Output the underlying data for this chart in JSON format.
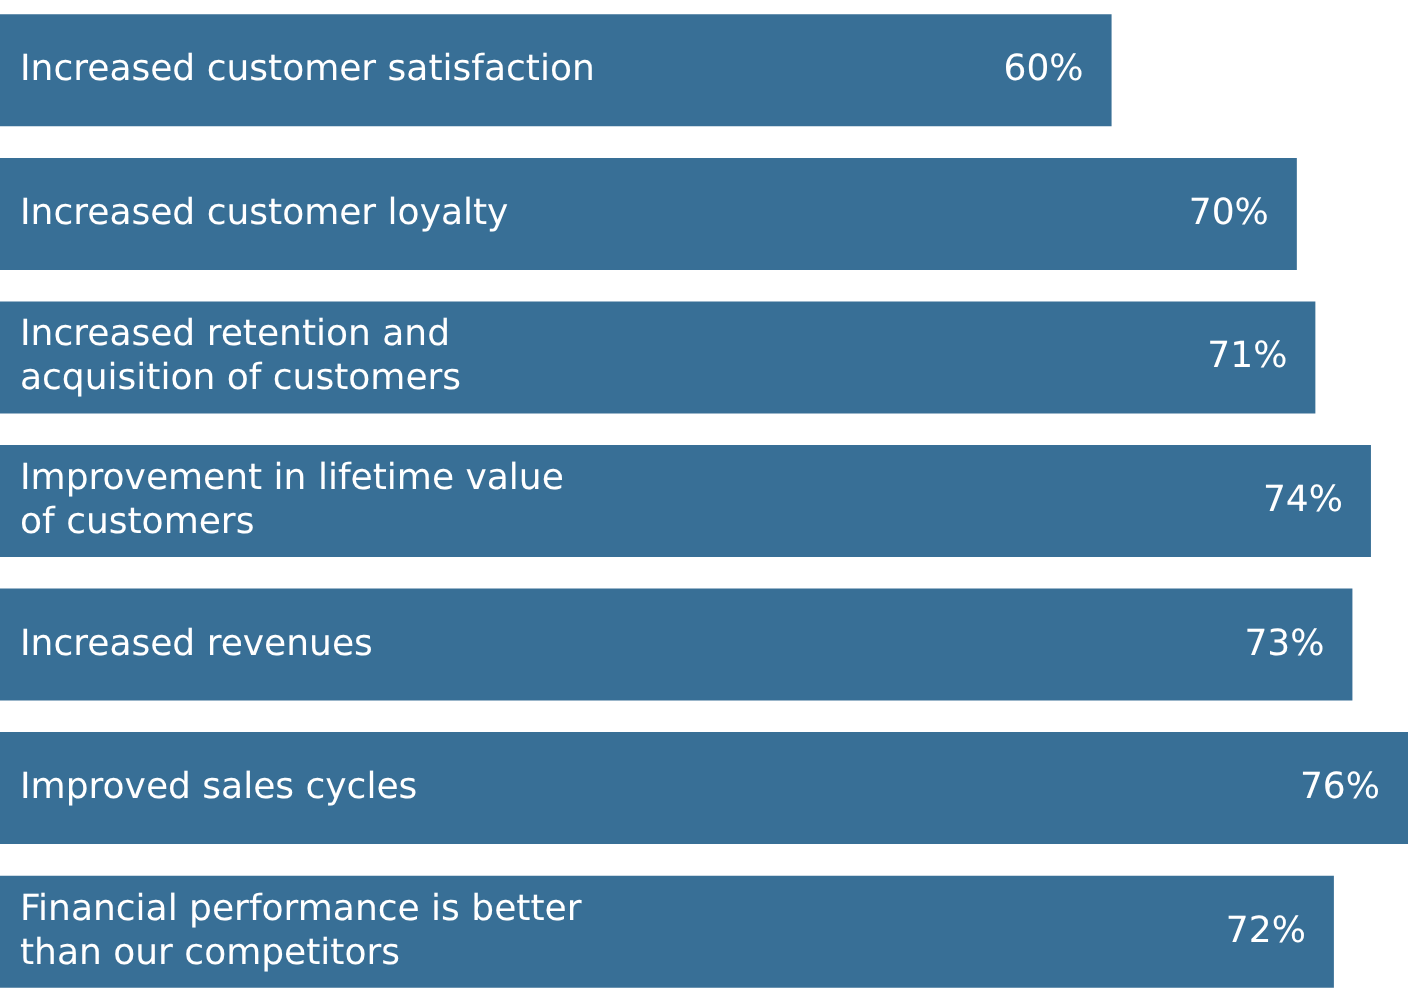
{
  "chart_data": {
    "type": "bar",
    "orientation": "horizontal",
    "categories": [
      "Increased customer satisfaction",
      "Increased customer loyalty",
      "Increased retention and acquisition of customers",
      "Improvement in lifetime value of customers",
      "Increased revenues",
      "Improved sales cycles",
      "Financial performance is better than our competitors"
    ],
    "values": [
      60,
      70,
      71,
      74,
      73,
      76,
      72
    ],
    "value_labels": [
      "60%",
      "70%",
      "71%",
      "74%",
      "73%",
      "76%",
      "72%"
    ],
    "color": "#386f96"
  }
}
